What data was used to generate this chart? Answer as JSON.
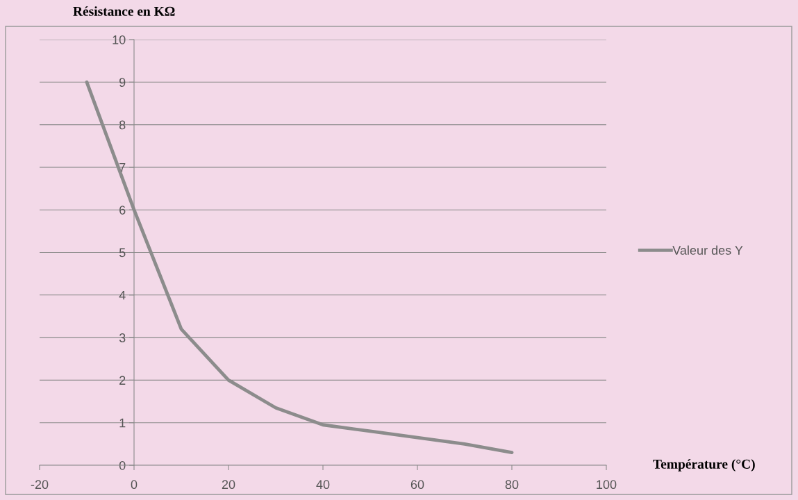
{
  "chart_data": {
    "type": "line",
    "ylabel": "Résistance en KΩ",
    "xlabel": "Température (°C)",
    "xlim": [
      -20,
      100
    ],
    "xticks": [
      -20,
      0,
      20,
      40,
      60,
      80,
      100
    ],
    "ylim": [
      0,
      10
    ],
    "yticks": [
      0,
      1,
      2,
      3,
      4,
      5,
      6,
      7,
      8,
      9,
      10
    ],
    "grid": "y",
    "legend": "right",
    "series": [
      {
        "name": "Valeur des Y",
        "color": "#8c8c8c",
        "x": [
          -10,
          0,
          10,
          20,
          30,
          40,
          50,
          60,
          70,
          80
        ],
        "values": [
          9,
          6,
          3.2,
          2,
          1.35,
          0.95,
          0.8,
          0.65,
          0.5,
          0.3
        ]
      }
    ]
  }
}
